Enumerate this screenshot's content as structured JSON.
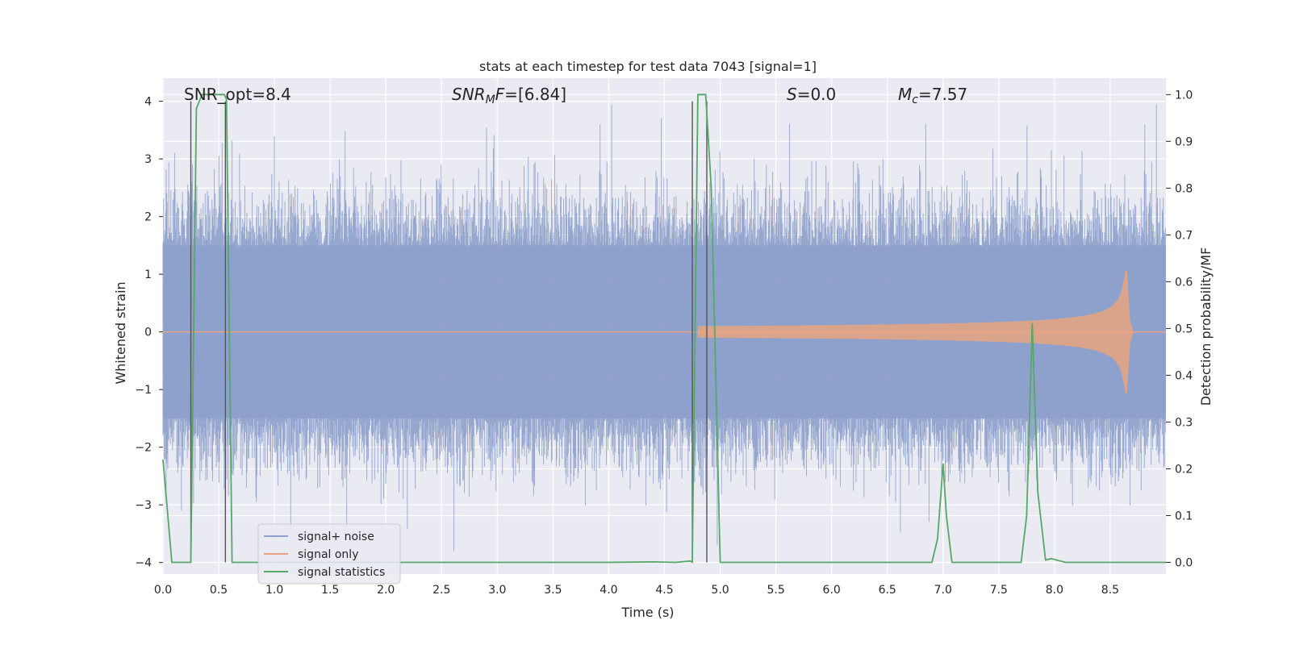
{
  "chart_data": {
    "type": "line",
    "title": "stats at each timestep for test data 7043 [signal=1]",
    "xlabel": "Time (s)",
    "ylabel_left": "Whitened strain",
    "ylabel_right": "Detection probability/MF",
    "xlim": [
      0.0,
      9.0
    ],
    "ylim_left": [
      -4.2,
      4.4
    ],
    "ylim_right": [
      -0.025,
      1.035
    ],
    "xticks": [
      "0.0",
      "0.5",
      "1.0",
      "1.5",
      "2.0",
      "2.5",
      "3.0",
      "3.5",
      "4.0",
      "4.5",
      "5.0",
      "5.5",
      "6.0",
      "6.5",
      "7.0",
      "7.5",
      "8.0",
      "8.5"
    ],
    "yticks_left": [
      "4",
      "3",
      "2",
      "1",
      "0",
      "−1",
      "−2",
      "−3",
      "−4"
    ],
    "yticks_right": [
      "1.0",
      "0.9",
      "0.8",
      "0.7",
      "0.6",
      "0.5",
      "0.4",
      "0.3",
      "0.2",
      "0.1",
      "0.0"
    ],
    "grid": true,
    "legend_position": "lower-left",
    "annotations": {
      "snr_opt": "SNR_opt=8.4",
      "snr_mf": "[6.84]",
      "s_value": "=0.0",
      "mc_value": "=7.57"
    },
    "series": [
      {
        "name": "signal+ noise",
        "color": "#8da0cb",
        "description_values": {
          "typical_envelope": [
            -1.5,
            1.5
          ],
          "peak_range": [
            -3.5,
            4.0
          ]
        }
      },
      {
        "name": "signal only",
        "color": "#e8a47f",
        "chirp": {
          "start": 4.8,
          "merger": 8.65,
          "max_amplitude": 1.1
        }
      },
      {
        "name": "signal statistics",
        "color": "#55a868",
        "x": [
          0.0,
          0.08,
          0.25,
          0.3,
          0.35,
          0.4,
          0.55,
          0.57,
          0.62,
          0.7,
          1.0,
          2.0,
          3.0,
          4.0,
          4.4,
          4.6,
          4.73,
          4.75,
          4.8,
          4.87,
          4.92,
          5.0,
          5.1,
          6.0,
          6.5,
          6.9,
          6.95,
          7.0,
          7.03,
          7.08,
          7.2,
          7.7,
          7.75,
          7.8,
          7.85,
          7.92,
          7.97,
          8.1,
          9.0
        ],
        "y": [
          0.22,
          0.0,
          0.0,
          0.97,
          1.0,
          1.0,
          1.0,
          0.99,
          0.0,
          0.0,
          0.0,
          0.0,
          0.0,
          0.0,
          0.001,
          0.0,
          0.003,
          0.0,
          1.0,
          1.0,
          0.8,
          0.0,
          0.0,
          0.0,
          0.0,
          0.0,
          0.05,
          0.21,
          0.1,
          0.0,
          0.0,
          0.0,
          0.1,
          0.51,
          0.15,
          0.005,
          0.008,
          0.0,
          0.0
        ]
      }
    ],
    "vertical_markers": [
      0.25,
      0.56,
      4.75,
      4.88
    ]
  }
}
